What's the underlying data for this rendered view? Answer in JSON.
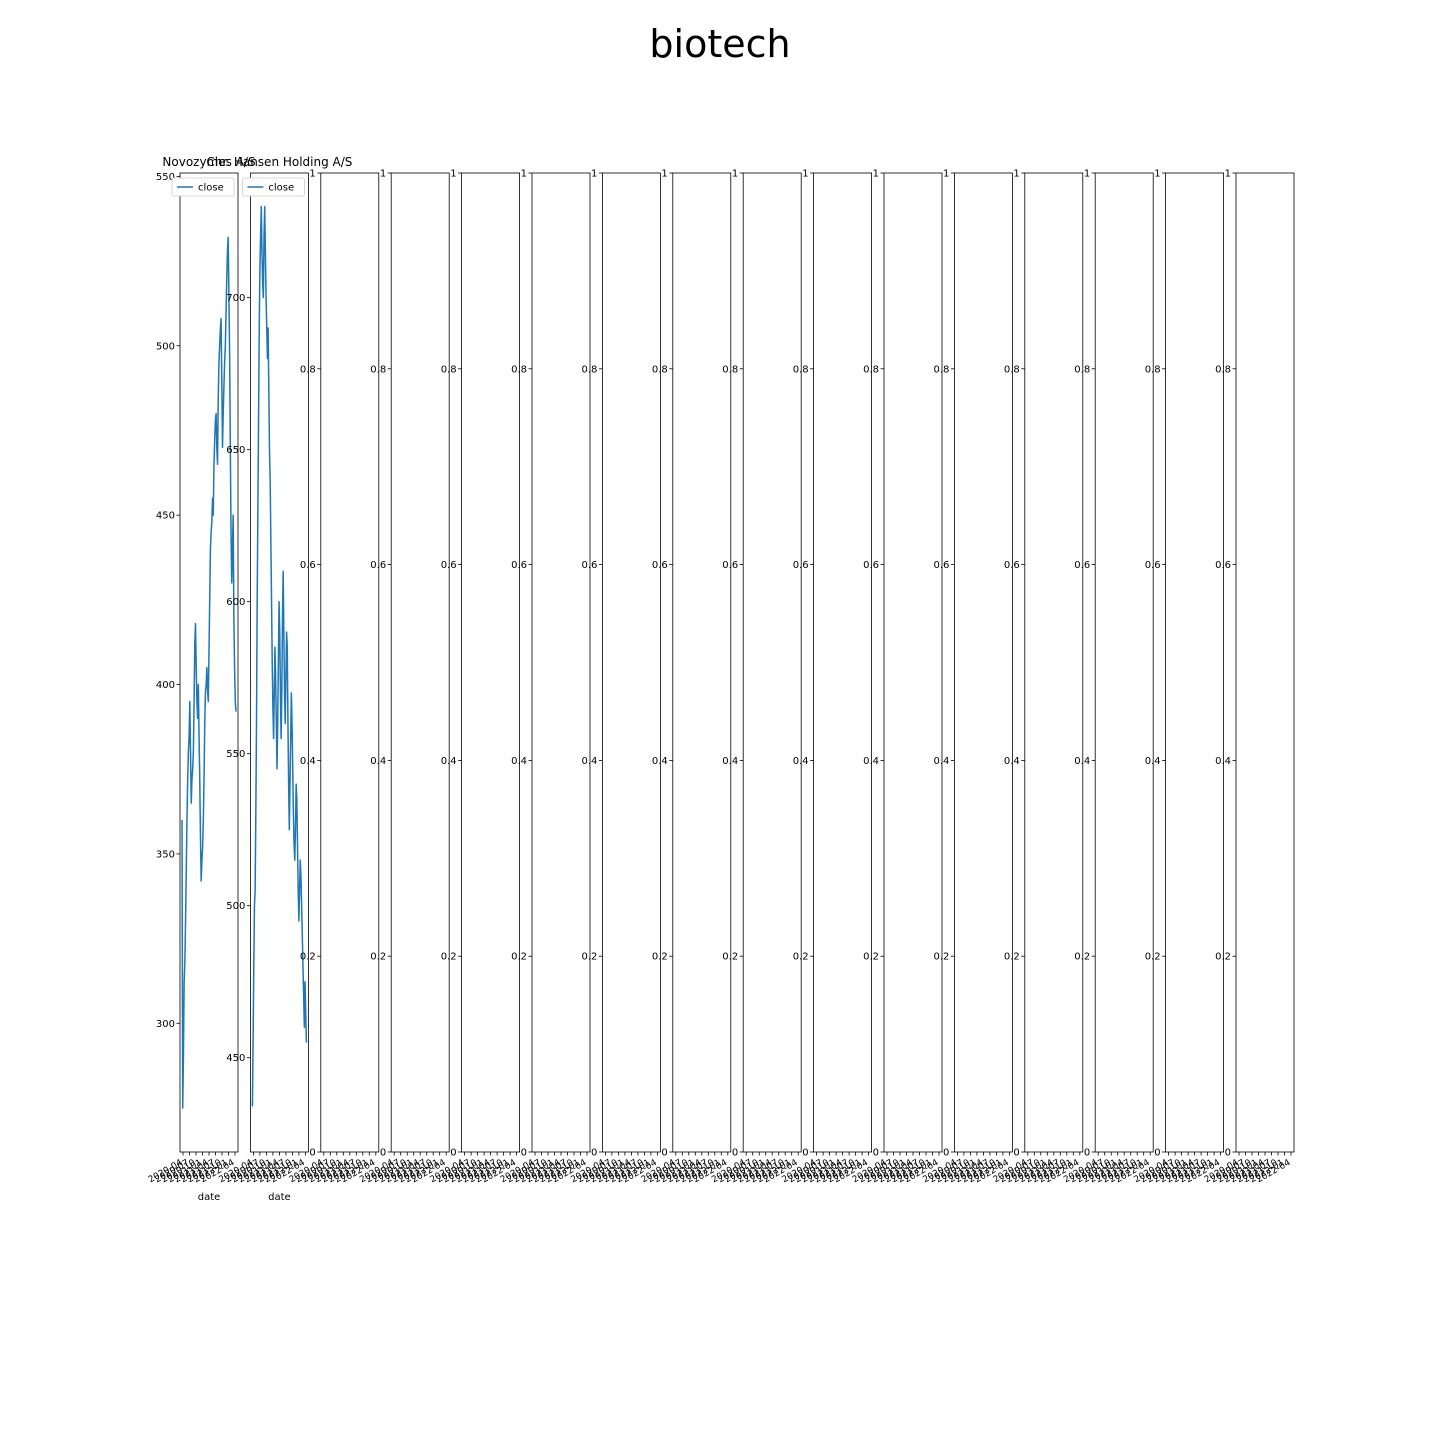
{
  "figure": {
    "title": "biotech"
  },
  "chart_data": [
    {
      "type": "line",
      "title": "Novozymes A/S",
      "xlabel": "date",
      "ylabel": "",
      "x_tick_labels": [
        "2020-04",
        "2020-07",
        "2020-10",
        "2021-01",
        "2021-04",
        "2021-07",
        "2021-10",
        "2022-01",
        "2022-04"
      ],
      "ylim": [
        262,
        551
      ],
      "y_ticks": [
        300,
        350,
        400,
        450,
        500,
        550
      ],
      "legend": {
        "entries": [
          "close"
        ],
        "position": "top-left"
      },
      "series": [
        {
          "name": "close",
          "color": "#1f77b4",
          "values": [
            360,
            275,
            290,
            312,
            318,
            330,
            345,
            360,
            372,
            380,
            385,
            395,
            380,
            365,
            372,
            375,
            380,
            395,
            412,
            418,
            405,
            395,
            390,
            400,
            385,
            372,
            355,
            342,
            348,
            352,
            360,
            372,
            388,
            398,
            400,
            405,
            398,
            395,
            410,
            425,
            440,
            445,
            448,
            455,
            450,
            465,
            472,
            478,
            480,
            470,
            465,
            485,
            495,
            500,
            505,
            508,
            490,
            470,
            480,
            488,
            495,
            500,
            510,
            520,
            528,
            532,
            515,
            498,
            470,
            445,
            430,
            440,
            450,
            420,
            405,
            395,
            392
          ]
        }
      ]
    },
    {
      "type": "line",
      "title": "Chr. Hansen Holding A/S",
      "xlabel": "date",
      "ylabel": "",
      "x_tick_labels": [
        "2020-04",
        "2020-07",
        "2020-10",
        "2021-01",
        "2021-04",
        "2021-07",
        "2021-10",
        "2022-01",
        "2022-04"
      ],
      "ylim": [
        419,
        741
      ],
      "y_ticks": [
        450,
        500,
        550,
        600,
        650,
        700
      ],
      "legend": {
        "entries": [
          "close"
        ],
        "position": "top-left"
      },
      "series": [
        {
          "name": "close",
          "color": "#1f77b4",
          "values": [
            434,
            455,
            480,
            500,
            505,
            530,
            560,
            600,
            630,
            660,
            690,
            710,
            720,
            730,
            715,
            705,
            700,
            720,
            730,
            715,
            700,
            690,
            680,
            690,
            670,
            650,
            640,
            620,
            600,
            580,
            565,
            555,
            570,
            585,
            575,
            560,
            545,
            560,
            580,
            600,
            590,
            570,
            555,
            570,
            595,
            610,
            590,
            570,
            560,
            575,
            590,
            585,
            560,
            540,
            525,
            540,
            555,
            570,
            560,
            545,
            530,
            520,
            515,
            525,
            540,
            535,
            520,
            505,
            495,
            505,
            515,
            510,
            500,
            490,
            480,
            470,
            460,
            475,
            465,
            455
          ]
        }
      ]
    },
    {
      "type": "line",
      "title": "",
      "xlabel": "",
      "ylabel": "",
      "ylim": [
        0,
        1
      ],
      "x_tick_labels": [
        "2020-04",
        "2020-07",
        "2020-10",
        "2021-01",
        "2021-04",
        "2021-07",
        "2021-10",
        "2022-01",
        "2022-04"
      ],
      "series": []
    },
    {
      "type": "line",
      "title": "",
      "xlabel": "",
      "ylabel": "",
      "ylim": [
        0,
        1
      ],
      "x_tick_labels": [
        "2020-04",
        "2020-07",
        "2020-10",
        "2021-01",
        "2021-04",
        "2021-07",
        "2021-10",
        "2022-01",
        "2022-04"
      ],
      "series": []
    },
    {
      "type": "line",
      "title": "",
      "xlabel": "",
      "ylabel": "",
      "ylim": [
        0,
        1
      ],
      "x_tick_labels": [
        "2020-04",
        "2020-07",
        "2020-10",
        "2021-01",
        "2021-04",
        "2021-07",
        "2021-10",
        "2022-01",
        "2022-04"
      ],
      "series": []
    },
    {
      "type": "line",
      "title": "",
      "xlabel": "",
      "ylabel": "",
      "ylim": [
        0,
        1
      ],
      "x_tick_labels": [
        "2020-04",
        "2020-07",
        "2020-10",
        "2021-01",
        "2021-04",
        "2021-07",
        "2021-10",
        "2022-01",
        "2022-04"
      ],
      "series": []
    },
    {
      "type": "line",
      "title": "",
      "xlabel": "",
      "ylabel": "",
      "ylim": [
        0,
        1
      ],
      "x_tick_labels": [
        "2020-04",
        "2020-07",
        "2020-10",
        "2021-01",
        "2021-04",
        "2021-07",
        "2021-10",
        "2022-01",
        "2022-04"
      ],
      "series": []
    },
    {
      "type": "line",
      "title": "",
      "xlabel": "",
      "ylabel": "",
      "ylim": [
        0,
        1
      ],
      "x_tick_labels": [
        "2020-04",
        "2020-07",
        "2020-10",
        "2021-01",
        "2021-04",
        "2021-07",
        "2021-10",
        "2022-01",
        "2022-04"
      ],
      "series": []
    },
    {
      "type": "line",
      "title": "",
      "xlabel": "",
      "ylabel": "",
      "ylim": [
        0,
        1
      ],
      "x_tick_labels": [
        "2020-04",
        "2020-07",
        "2020-10",
        "2021-01",
        "2021-04",
        "2021-07",
        "2021-10",
        "2022-01",
        "2022-04"
      ],
      "series": []
    },
    {
      "type": "line",
      "title": "",
      "xlabel": "",
      "ylabel": "",
      "ylim": [
        0,
        1
      ],
      "x_tick_labels": [
        "2020-04",
        "2020-07",
        "2020-10",
        "2021-01",
        "2021-04",
        "2021-07",
        "2021-10",
        "2022-01",
        "2022-04"
      ],
      "series": []
    },
    {
      "type": "line",
      "title": "",
      "xlabel": "",
      "ylabel": "",
      "ylim": [
        0,
        1
      ],
      "x_tick_labels": [
        "2020-04",
        "2020-07",
        "2020-10",
        "2021-01",
        "2021-04",
        "2021-07",
        "2021-10",
        "2022-01",
        "2022-04"
      ],
      "series": []
    },
    {
      "type": "line",
      "title": "",
      "xlabel": "",
      "ylabel": "",
      "ylim": [
        0,
        1
      ],
      "x_tick_labels": [
        "2020-04",
        "2020-07",
        "2020-10",
        "2021-01",
        "2021-04",
        "2021-07",
        "2021-10",
        "2022-01",
        "2022-04"
      ],
      "series": []
    },
    {
      "type": "line",
      "title": "",
      "xlabel": "",
      "ylabel": "",
      "ylim": [
        0,
        1
      ],
      "x_tick_labels": [
        "2020-04",
        "2020-07",
        "2020-10",
        "2021-01",
        "2021-04",
        "2021-07",
        "2021-10",
        "2022-01",
        "2022-04"
      ],
      "series": []
    },
    {
      "type": "line",
      "title": "",
      "xlabel": "",
      "ylabel": "",
      "ylim": [
        0,
        1
      ],
      "x_tick_labels": [
        "2020-04",
        "2020-07",
        "2020-10",
        "2021-01",
        "2021-04",
        "2021-07",
        "2021-10",
        "2022-01",
        "2022-04"
      ],
      "series": []
    },
    {
      "type": "line",
      "title": "",
      "xlabel": "",
      "ylabel": "",
      "ylim": [
        0,
        1
      ],
      "x_tick_labels": [
        "2020-04",
        "2020-07",
        "2020-10",
        "2021-01",
        "2021-04",
        "2021-07",
        "2021-10",
        "2022-01",
        "2022-04"
      ],
      "series": []
    },
    {
      "type": "line",
      "title": "",
      "xlabel": "",
      "ylabel": "",
      "ylim": [
        0,
        1
      ],
      "x_tick_labels": [
        "2020-04",
        "2020-07",
        "2020-10",
        "2021-01",
        "2021-04",
        "2021-07",
        "2021-10",
        "2022-01",
        "2022-04"
      ],
      "series": []
    }
  ]
}
